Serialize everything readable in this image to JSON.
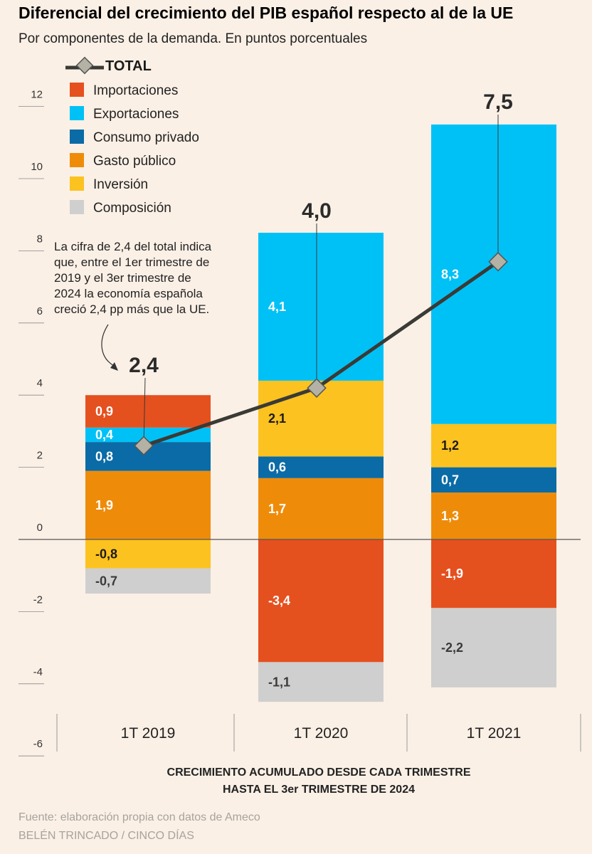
{
  "header": {
    "title": "Diferencial del crecimiento del PIB español respecto al de la UE",
    "subtitle": "Por componentes de la demanda. En puntos porcentuales"
  },
  "legend": {
    "total_label": "TOTAL",
    "total_color": "#3a3a36",
    "total_marker_color": "#b4b2a4",
    "items": [
      {
        "key": "importaciones",
        "label": "Importaciones",
        "color": "#e5501f"
      },
      {
        "key": "exportaciones",
        "label": "Exportaciones",
        "color": "#00c1f6"
      },
      {
        "key": "consumo",
        "label": "Consumo privado",
        "color": "#0a6ba6"
      },
      {
        "key": "gasto",
        "label": "Gasto público",
        "color": "#ee8c0a"
      },
      {
        "key": "inversion",
        "label": "Inversión",
        "color": "#fcc21f"
      },
      {
        "key": "composicion",
        "label": "Composición",
        "color": "#cfcfcf"
      }
    ]
  },
  "annotation": {
    "lines": [
      "La cifra de 2,4 del total indica",
      "que, entre el 1er trimestre de",
      "2019 y el 3er trimestre de",
      "2024 la economía española",
      "creció 2,4 pp más que la UE."
    ]
  },
  "x_caption": {
    "line1": "CRECIMIENTO ACUMULADO DESDE CADA TRIMESTRE",
    "line2": "HASTA EL 3er TRIMESTRE DE 2024"
  },
  "footer": {
    "source": "Fuente: elaboración propia con datos de Ameco",
    "credit": "BELÉN TRINCADO / CINCO DÍAS"
  },
  "chart_data": {
    "type": "bar",
    "stacked": true,
    "title": "Diferencial del crecimiento del PIB español respecto al de la UE",
    "ylabel": "Puntos porcentuales",
    "ylim": [
      -6,
      12
    ],
    "yticks": [
      12,
      10,
      8,
      6,
      4,
      2,
      0,
      -2,
      -4,
      -6
    ],
    "categories": [
      "1T 2019",
      "1T 2020",
      "1T 2021"
    ],
    "positive_stack_order": [
      "gasto",
      "consumo",
      "inversion",
      "exportaciones",
      "importaciones"
    ],
    "negative_stack_order": [
      "inversion",
      "importaciones",
      "composicion"
    ],
    "series": [
      {
        "key": "importaciones",
        "name": "Importaciones",
        "values": [
          0.9,
          -3.4,
          -1.9
        ],
        "labels": [
          "0,9",
          "-3,4",
          "-1,9"
        ],
        "text_colors": [
          "#ffffff",
          "#ffffff",
          "#ffffff"
        ]
      },
      {
        "key": "exportaciones",
        "name": "Exportaciones",
        "values": [
          0.4,
          4.1,
          8.3
        ],
        "labels": [
          "0,4",
          "4,1",
          "8,3"
        ],
        "text_colors": [
          "#ffffff",
          "#ffffff",
          "#ffffff"
        ]
      },
      {
        "key": "consumo",
        "name": "Consumo privado",
        "values": [
          0.8,
          0.6,
          0.7
        ],
        "labels": [
          "0,8",
          "0,6",
          "0,7"
        ],
        "text_colors": [
          "#ffffff",
          "#ffffff",
          "#ffffff"
        ]
      },
      {
        "key": "gasto",
        "name": "Gasto público",
        "values": [
          1.9,
          1.7,
          1.3
        ],
        "labels": [
          "1,9",
          "1,7",
          "1,3"
        ],
        "text_colors": [
          "#ffffff",
          "#ffffff",
          "#ffffff"
        ]
      },
      {
        "key": "inversion",
        "name": "Inversión",
        "values": [
          -0.8,
          2.1,
          1.2
        ],
        "labels": [
          "-0,8",
          "2,1",
          "1,2"
        ],
        "text_colors": [
          "#1a1a1a",
          "#1a1a1a",
          "#1a1a1a"
        ]
      },
      {
        "key": "composicion",
        "name": "Composición",
        "values": [
          -0.7,
          -1.1,
          -2.2
        ],
        "labels": [
          "-0,7",
          "-1,1",
          "-2,2"
        ],
        "text_colors": [
          "#3a3a3a",
          "#3a3a3a",
          "#3a3a3a"
        ]
      }
    ],
    "total": {
      "name": "TOTAL",
      "values": [
        2.4,
        4.0,
        7.5
      ],
      "labels": [
        "2,4",
        "4,0",
        "7,5"
      ]
    },
    "xlabel": "CRECIMIENTO ACUMULADO DESDE CADA TRIMESTRE HASTA EL 3er TRIMESTRE DE 2024"
  }
}
